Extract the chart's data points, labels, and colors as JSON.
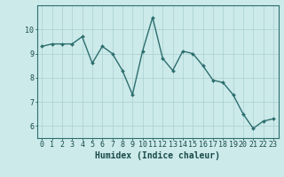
{
  "x": [
    0,
    1,
    2,
    3,
    4,
    5,
    6,
    7,
    8,
    9,
    10,
    11,
    12,
    13,
    14,
    15,
    16,
    17,
    18,
    19,
    20,
    21,
    22,
    23
  ],
  "y": [
    9.3,
    9.4,
    9.4,
    9.4,
    9.7,
    8.6,
    9.3,
    9.0,
    8.3,
    7.3,
    9.1,
    10.5,
    8.8,
    8.3,
    9.1,
    9.0,
    8.5,
    7.9,
    7.8,
    7.3,
    6.5,
    5.9,
    6.2,
    6.3
  ],
  "xlabel": "Humidex (Indice chaleur)",
  "xlim": [
    -0.5,
    23.5
  ],
  "ylim": [
    5.5,
    11.0
  ],
  "yticks": [
    6,
    7,
    8,
    9,
    10
  ],
  "xticks": [
    0,
    1,
    2,
    3,
    4,
    5,
    6,
    7,
    8,
    9,
    10,
    11,
    12,
    13,
    14,
    15,
    16,
    17,
    18,
    19,
    20,
    21,
    22,
    23
  ],
  "line_color": "#2d6e6e",
  "marker_color": "#2d6e6e",
  "bg_color": "#cceaea",
  "grid_color": "#aacfcf",
  "axis_color": "#2d6e6e",
  "label_color": "#1a4a4a",
  "font_size_label": 7,
  "font_size_tick": 6,
  "marker_size": 2.0,
  "line_width": 1.0
}
